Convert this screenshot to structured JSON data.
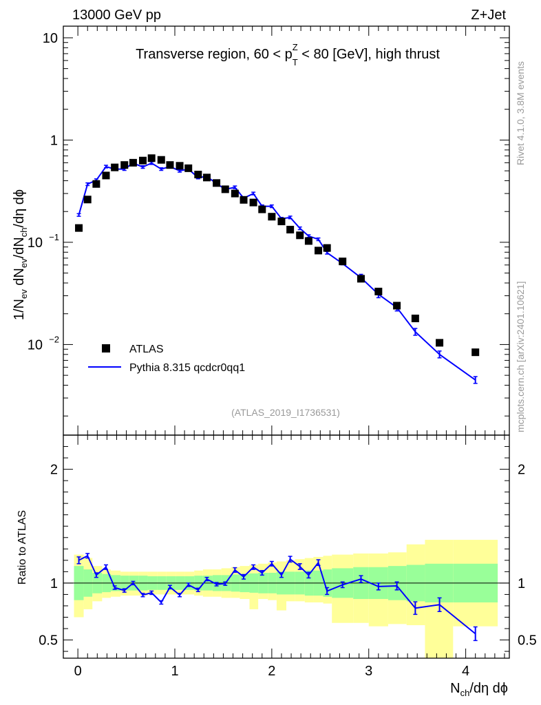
{
  "header": {
    "energy_label": "13000 GeV pp",
    "process_label": "Z+Jet",
    "side_label_top": "Rivet 4.1.0,  3.8M events",
    "side_label_bottom": "mcplots.cern.ch [arXiv:2401.10621]"
  },
  "chart_data": [
    {
      "type": "scatter",
      "panel": "main",
      "title_prefix": "Transverse region, 60 < p",
      "title_sup": "Z",
      "title_sub": "T",
      "title_suffix": " < 80 [GeV], high thrust",
      "ylabel_parts": [
        "1/N",
        "ev",
        " dN",
        "ev",
        "/dN",
        "ch",
        "/dη dϕ"
      ],
      "yscale": "log",
      "ylim": [
        0.0013,
        13
      ],
      "xlim": [
        -0.15,
        4.45
      ],
      "yticks": [
        {
          "value": 10,
          "label": "10"
        },
        {
          "value": 1,
          "label": "1"
        },
        {
          "value": 0.1,
          "label": "10",
          "exp": "−1"
        },
        {
          "value": 0.01,
          "label": "10",
          "exp": "−2"
        }
      ],
      "watermark": "(ATLAS_2019_I1736531)",
      "legend": [
        {
          "name": "ATLAS",
          "marker": "square",
          "color": "#000000"
        },
        {
          "name": "Pythia 8.315 qcdcr0qq1",
          "marker": "line",
          "color": "#0000ff"
        }
      ],
      "x": [
        0.01,
        0.1,
        0.19,
        0.29,
        0.38,
        0.48,
        0.57,
        0.67,
        0.76,
        0.86,
        0.95,
        1.05,
        1.14,
        1.24,
        1.33,
        1.43,
        1.52,
        1.62,
        1.71,
        1.81,
        1.9,
        2.0,
        2.1,
        2.19,
        2.29,
        2.38,
        2.48,
        2.57,
        2.73,
        2.92,
        3.1,
        3.29,
        3.48,
        3.73,
        4.1
      ],
      "series": [
        {
          "name": "ATLAS",
          "values": [
            0.138,
            0.262,
            0.372,
            0.45,
            0.54,
            0.57,
            0.6,
            0.63,
            0.665,
            0.64,
            0.57,
            0.56,
            0.53,
            0.46,
            0.43,
            0.38,
            0.33,
            0.3,
            0.26,
            0.245,
            0.21,
            0.178,
            0.16,
            0.133,
            0.117,
            0.103,
            0.083,
            0.088,
            0.065,
            0.044,
            0.033,
            0.024,
            0.018,
            0.0104,
            0.0084
          ]
        },
        {
          "name": "Pythia 8.315 qcdcr0qq1",
          "values": [
            0.185,
            0.37,
            0.405,
            0.55,
            0.52,
            0.52,
            0.595,
            0.545,
            0.595,
            0.52,
            0.55,
            0.5,
            0.52,
            0.43,
            0.44,
            0.375,
            0.33,
            0.345,
            0.27,
            0.3,
            0.225,
            0.225,
            0.17,
            0.175,
            0.137,
            0.115,
            0.107,
            0.079,
            0.062,
            0.045,
            0.031,
            0.023,
            0.0133,
            0.008,
            0.0045
          ]
        }
      ]
    },
    {
      "type": "line",
      "panel": "ratio",
      "ylabel": "Ratio to ATLAS",
      "xlabel_parts": [
        "N",
        "ch",
        "/dη dϕ"
      ],
      "ylim": [
        0.34,
        2.3
      ],
      "xlim": [
        -0.15,
        4.45
      ],
      "xticks": [
        0,
        1,
        2,
        3,
        4
      ],
      "yticks": [
        0.5,
        1,
        2
      ],
      "x_edges": [
        -0.04,
        0.06,
        0.15,
        0.25,
        0.34,
        0.44,
        0.53,
        0.63,
        0.72,
        0.82,
        0.91,
        1.01,
        1.1,
        1.2,
        1.29,
        1.39,
        1.48,
        1.58,
        1.67,
        1.77,
        1.86,
        1.96,
        2.05,
        2.15,
        2.24,
        2.34,
        2.43,
        2.53,
        2.62,
        2.84,
        3.0,
        3.2,
        3.39,
        3.58,
        3.87,
        4.33
      ],
      "band_green_low": [
        0.85,
        0.88,
        0.91,
        0.92,
        0.93,
        0.935,
        0.935,
        0.935,
        0.94,
        0.94,
        0.94,
        0.94,
        0.94,
        0.935,
        0.935,
        0.93,
        0.93,
        0.925,
        0.92,
        0.915,
        0.91,
        0.91,
        0.9,
        0.9,
        0.9,
        0.89,
        0.89,
        0.88,
        0.87,
        0.86,
        0.86,
        0.85,
        0.84,
        0.83,
        0.83
      ],
      "band_green_high": [
        1.15,
        1.12,
        1.09,
        1.08,
        1.07,
        1.065,
        1.065,
        1.065,
        1.06,
        1.06,
        1.06,
        1.06,
        1.06,
        1.065,
        1.065,
        1.07,
        1.07,
        1.075,
        1.08,
        1.085,
        1.09,
        1.09,
        1.1,
        1.1,
        1.1,
        1.11,
        1.11,
        1.12,
        1.13,
        1.14,
        1.14,
        1.15,
        1.16,
        1.17,
        1.17
      ],
      "band_yellow_low": [
        0.7,
        0.77,
        0.84,
        0.87,
        0.88,
        0.89,
        0.89,
        0.89,
        0.9,
        0.9,
        0.9,
        0.9,
        0.9,
        0.89,
        0.88,
        0.88,
        0.87,
        0.87,
        0.86,
        0.77,
        0.86,
        0.85,
        0.76,
        0.84,
        0.84,
        0.83,
        0.83,
        0.82,
        0.65,
        0.65,
        0.62,
        0.64,
        0.63,
        0.34,
        0.62
      ],
      "band_yellow_high": [
        1.25,
        1.22,
        1.15,
        1.12,
        1.11,
        1.1,
        1.1,
        1.1,
        1.1,
        1.1,
        1.1,
        1.1,
        1.1,
        1.11,
        1.12,
        1.12,
        1.13,
        1.14,
        1.15,
        1.16,
        1.17,
        1.18,
        1.19,
        1.2,
        1.21,
        1.22,
        1.23,
        1.24,
        1.25,
        1.26,
        1.26,
        1.27,
        1.34,
        1.38,
        1.38
      ],
      "x": [
        0.01,
        0.1,
        0.19,
        0.29,
        0.38,
        0.48,
        0.57,
        0.67,
        0.76,
        0.86,
        0.95,
        1.05,
        1.14,
        1.24,
        1.33,
        1.43,
        1.52,
        1.62,
        1.71,
        1.81,
        1.9,
        2.0,
        2.1,
        2.19,
        2.29,
        2.38,
        2.48,
        2.57,
        2.73,
        2.92,
        3.1,
        3.29,
        3.48,
        3.73,
        4.1
      ],
      "values": [
        1.2,
        1.24,
        1.07,
        1.14,
        0.96,
        0.935,
        1.0,
        0.895,
        0.915,
        0.83,
        0.965,
        0.895,
        0.985,
        0.94,
        1.035,
        0.99,
        0.995,
        1.115,
        1.055,
        1.14,
        1.09,
        1.17,
        1.07,
        1.21,
        1.145,
        1.07,
        1.18,
        0.93,
        0.985,
        1.035,
        0.97,
        0.975,
        0.78,
        0.81,
        0.555
      ],
      "errors": [
        0.03,
        0.02,
        0.02,
        0.02,
        0.015,
        0.015,
        0.015,
        0.015,
        0.015,
        0.015,
        0.015,
        0.015,
        0.015,
        0.015,
        0.015,
        0.015,
        0.015,
        0.02,
        0.02,
        0.02,
        0.02,
        0.02,
        0.02,
        0.025,
        0.025,
        0.025,
        0.025,
        0.03,
        0.025,
        0.03,
        0.03,
        0.035,
        0.055,
        0.06,
        0.06
      ]
    }
  ]
}
